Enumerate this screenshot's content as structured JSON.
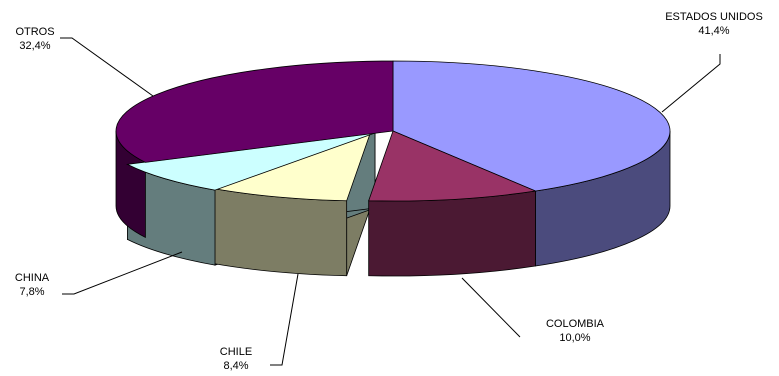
{
  "chart_data": {
    "type": "pie",
    "style": "3d-exploded-free",
    "title": "",
    "legend": "none",
    "slices": [
      {
        "label": "ESTADOS UNIDOS",
        "value": 41.4,
        "value_label": "41,4%",
        "top_color": "#9999ff",
        "side_color": "#4b4b7d"
      },
      {
        "label": "COLOMBIA",
        "value": 10.0,
        "value_label": "10,0%",
        "top_color": "#993366",
        "side_color": "#4b1933"
      },
      {
        "label": "CHILE",
        "value": 8.4,
        "value_label": "8,4%",
        "top_color": "#ffffcc",
        "side_color": "#7d7d64"
      },
      {
        "label": "CHINA",
        "value": 7.8,
        "value_label": "7,8%",
        "top_color": "#ccffff",
        "side_color": "#647d7d"
      },
      {
        "label": "OTROS",
        "value": 32.4,
        "value_label": "32,4%",
        "top_color": "#660066",
        "side_color": "#330033"
      }
    ]
  }
}
